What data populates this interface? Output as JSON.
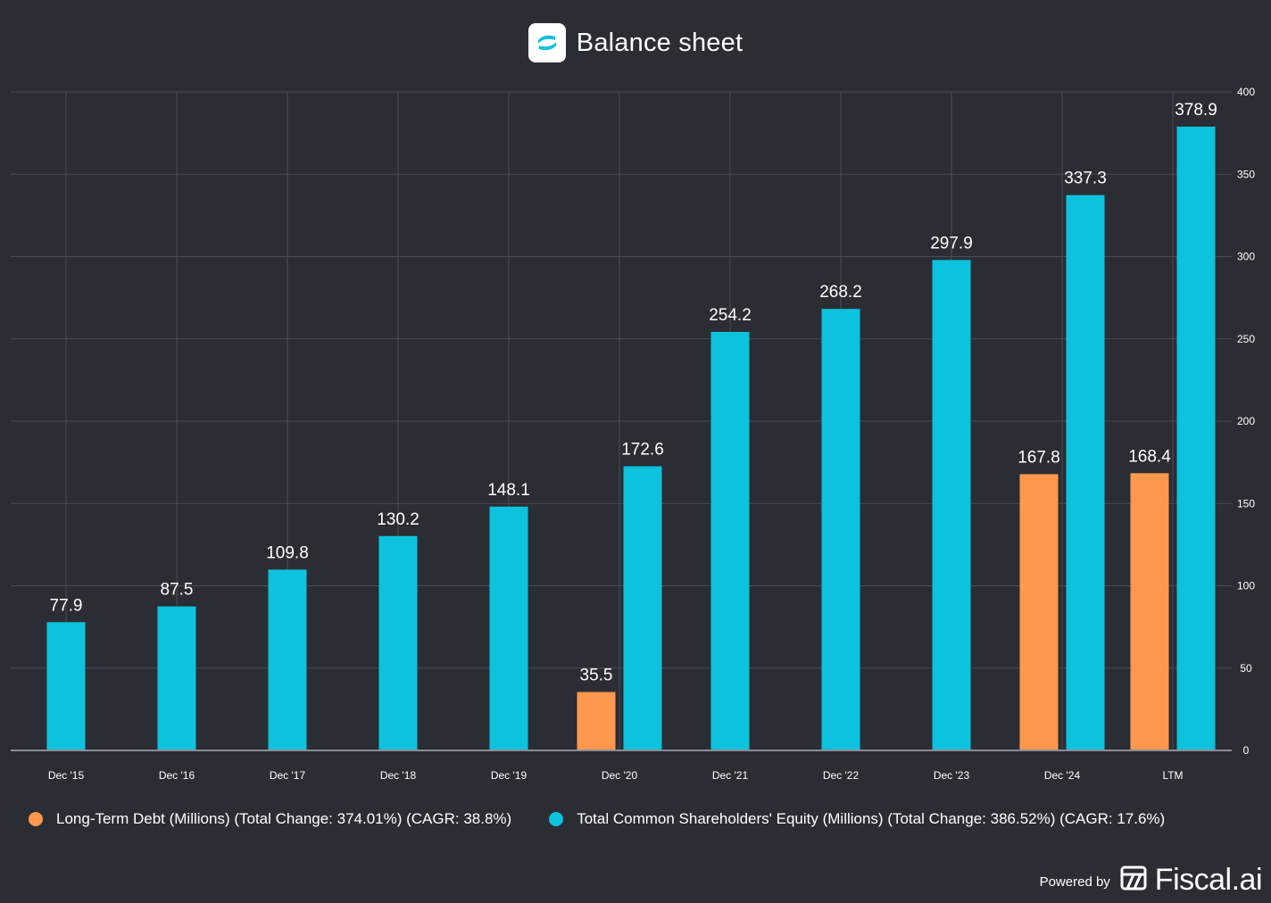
{
  "title": "Balance sheet",
  "footer": {
    "powered_by": "Powered by",
    "brand": "Fiscal.ai"
  },
  "colors": {
    "background": "#2b2d35",
    "grid": "#4a4d57",
    "debt": "#ff984d",
    "equity": "#0dc2dd",
    "axis_text": "#ffffff"
  },
  "chart_data": {
    "type": "bar",
    "title": "Balance sheet",
    "categories": [
      "Dec '15",
      "Dec '16",
      "Dec '17",
      "Dec '18",
      "Dec '19",
      "Dec '20",
      "Dec '21",
      "Dec '22",
      "Dec '23",
      "Dec '24",
      "LTM"
    ],
    "series": [
      {
        "name": "Long-Term Debt (Millions) (Total Change: 374.01%) (CAGR: 38.8%)",
        "color": "#ff984d",
        "values": [
          null,
          null,
          null,
          null,
          null,
          35.5,
          null,
          null,
          null,
          167.8,
          168.4
        ],
        "labels": [
          "",
          "",
          "",
          "",
          "",
          "35.5",
          "",
          "",
          "",
          "167.8",
          "168.4"
        ]
      },
      {
        "name": "Total Common Shareholders' Equity (Millions) (Total Change: 386.52%) (CAGR: 17.6%)",
        "color": "#0dc2dd",
        "values": [
          77.9,
          87.5,
          109.8,
          130.2,
          148.1,
          172.6,
          254.2,
          268.2,
          297.9,
          337.3,
          378.9
        ],
        "labels": [
          "77.9",
          "87.5",
          "109.8",
          "130.2",
          "148.1",
          "172.6",
          "254.2",
          "268.2",
          "297.9",
          "337.3",
          "378.9"
        ]
      }
    ],
    "y_ticks": [
      0,
      50,
      100,
      150,
      200,
      250,
      300,
      350,
      400
    ],
    "y_tick_labels": [
      "0",
      "50",
      "100",
      "150",
      "200",
      "250",
      "300",
      "350",
      "400"
    ],
    "ylim": [
      0,
      400
    ],
    "y_axis_side": "right",
    "grid": true,
    "legend_position": "bottom"
  }
}
